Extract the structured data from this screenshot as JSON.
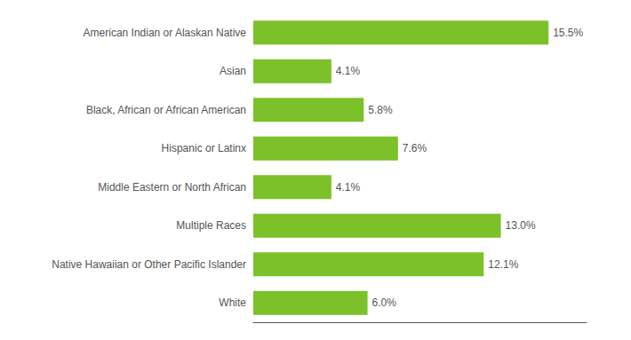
{
  "chart_data": {
    "type": "bar",
    "orientation": "horizontal",
    "categories": [
      "American Indian or Alaskan Native",
      "Asian",
      "Black, African or African American",
      "Hispanic or Latinx",
      "Middle Eastern or North African",
      "Multiple Races",
      "Native Hawaiian or Other Pacific Islander",
      "White"
    ],
    "values": [
      15.5,
      4.1,
      5.8,
      7.6,
      4.1,
      13.0,
      12.1,
      6.0
    ],
    "value_labels": [
      "15.5%",
      "4.1%",
      "5.8%",
      "7.6%",
      "4.1%",
      "13.0%",
      "12.1%",
      "6.0%"
    ],
    "data_labels": true,
    "color": "#7DC12A",
    "xlim": [
      0,
      17.5
    ],
    "xticks": [],
    "tick_labels": "y",
    "grid": false
  }
}
